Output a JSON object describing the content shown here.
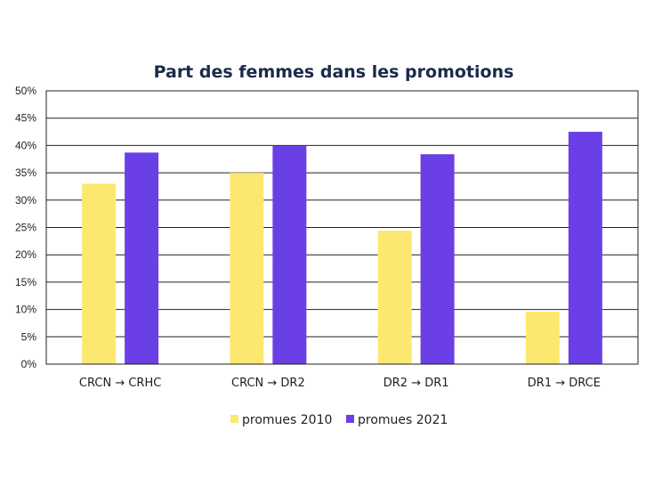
{
  "chart_data": {
    "type": "bar",
    "title": "Part des femmes dans les promotions",
    "xlabel": "",
    "ylabel": "",
    "categories": [
      "CRCN → CRHC",
      "CRCN → DR2",
      "DR2 → DR1",
      "DR1 → DRCE"
    ],
    "series": [
      {
        "name": "promues 2010",
        "color": "#fce870",
        "values": [
          33.0,
          35.0,
          24.4,
          9.6
        ]
      },
      {
        "name": "promues 2021",
        "color": "#6a40e6",
        "values": [
          38.7,
          39.9,
          38.4,
          42.5
        ]
      }
    ],
    "ylim": [
      0,
      50
    ],
    "yticks": [
      "0%",
      "5%",
      "10%",
      "15%",
      "20%",
      "25%",
      "30%",
      "35%",
      "40%",
      "45%",
      "50%"
    ],
    "grid": true,
    "legend": "bottom"
  }
}
